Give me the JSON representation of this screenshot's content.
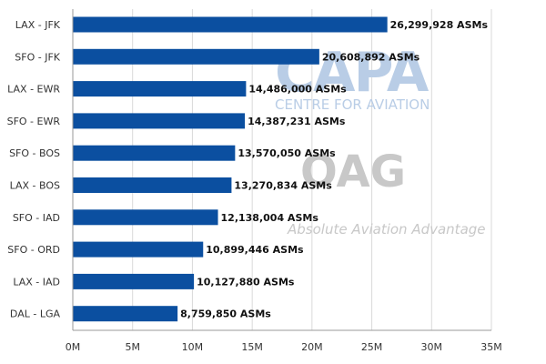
{
  "watermarks": {
    "capa_title": "CAPA",
    "capa_subtitle": "CENTRE FOR AVIATION",
    "oag_title": "OAG",
    "oag_subtitle": "Absolute Aviation Advantage"
  },
  "colors": {
    "bar": "#0b4fa0",
    "gridline": "#d9d9d9",
    "axis": "#9a9a9a"
  },
  "chart_data": {
    "type": "bar",
    "orientation": "horizontal",
    "categories": [
      "LAX - JFK",
      "SFO - JFK",
      "LAX - EWR",
      "SFO - EWR",
      "SFO - BOS",
      "LAX - BOS",
      "SFO - IAD",
      "SFO - ORD",
      "LAX - IAD",
      "DAL - LGA"
    ],
    "values": [
      26299928,
      20608892,
      14486000,
      14387231,
      13570050,
      13270834,
      12138004,
      10899446,
      10127880,
      8759850
    ],
    "value_labels": [
      "26,299,928 ASMs",
      "20,608,892 ASMs",
      "14,486,000 ASMs",
      "14,387,231 ASMs",
      "13,570,050 ASMs",
      "13,270,834 ASMs",
      "12,138,004 ASMs",
      "10,899,446 ASMs",
      "10,127,880 ASMs",
      "8,759,850 ASMs"
    ],
    "xlim": [
      0,
      35000000
    ],
    "xticks": [
      0,
      5000000,
      10000000,
      15000000,
      20000000,
      25000000,
      30000000,
      35000000
    ],
    "xtick_labels": [
      "0M",
      "5M",
      "10M",
      "15M",
      "20M",
      "25M",
      "30M",
      "35M"
    ],
    "grid": true,
    "legend": "none"
  }
}
